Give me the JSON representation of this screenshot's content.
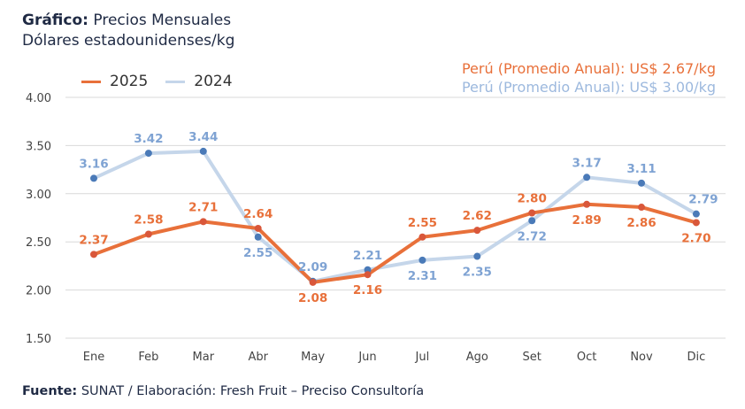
{
  "header": {
    "title_bold": "Gráfico:",
    "title_rest": "Precios Mensuales",
    "subtitle": "Dólares estadounidenses/kg"
  },
  "averages": {
    "s2025": "Perú (Promedio Anual): US$ 2.67/kg",
    "s2024": "Perú (Promedio Anual): US$ 3.00/kg"
  },
  "footer": {
    "source_bold": "Fuente:",
    "source_rest": "SUNAT / Elaboración: Fresh Fruit – Preciso Consultoría"
  },
  "colors": {
    "s2025": "#E8703A",
    "s2024_line": "#C5D6EA",
    "s2024_marker": "#4A7AB8",
    "s2024_label": "#7FA3D3"
  },
  "chart_data": {
    "type": "line",
    "categories": [
      "Ene",
      "Feb",
      "Mar",
      "Abr",
      "May",
      "Jun",
      "Jul",
      "Ago",
      "Set",
      "Oct",
      "Nov",
      "Dic"
    ],
    "ylim": [
      1.5,
      4.0
    ],
    "yticks": [
      "1.50",
      "2.00",
      "2.50",
      "3.00",
      "3.50",
      "4.00"
    ],
    "grid": true,
    "legend_position": "top-left",
    "series": [
      {
        "name": "2025",
        "values": [
          2.37,
          2.58,
          2.71,
          2.64,
          2.08,
          2.16,
          2.55,
          2.62,
          2.8,
          2.89,
          2.86,
          2.7
        ]
      },
      {
        "name": "2024",
        "values": [
          3.16,
          3.42,
          3.44,
          2.55,
          2.09,
          2.21,
          2.31,
          2.35,
          2.72,
          3.17,
          3.11,
          2.79
        ]
      }
    ]
  }
}
